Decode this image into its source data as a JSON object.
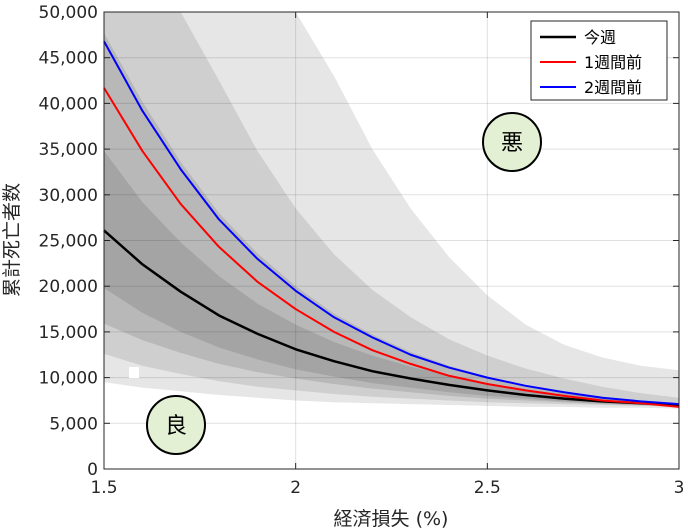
{
  "chart_data": {
    "type": "line",
    "xlabel": "経済損失 (%)",
    "ylabel": "累計死亡者数",
    "xlim": [
      1.5,
      3
    ],
    "ylim": [
      0,
      50000
    ],
    "xticks": [
      1.5,
      2,
      2.5,
      3
    ],
    "xtick_labels": [
      "1.5",
      "2",
      "2.5",
      "3"
    ],
    "yticks": [
      0,
      5000,
      10000,
      15000,
      20000,
      25000,
      30000,
      35000,
      40000,
      45000,
      50000
    ],
    "ytick_labels": [
      "0",
      "5,000",
      "10,000",
      "15,000",
      "20,000",
      "25,000",
      "30,000",
      "35,000",
      "40,000",
      "45,000",
      "50,000"
    ],
    "grid": true,
    "legend_position": "top-right",
    "x": [
      1.5,
      1.6,
      1.7,
      1.8,
      1.9,
      2.0,
      2.1,
      2.2,
      2.3,
      2.4,
      2.5,
      2.6,
      2.7,
      2.8,
      2.9,
      3.0
    ],
    "series": [
      {
        "name": "今週",
        "color": "#000000",
        "values": [
          26100,
          22400,
          19400,
          16800,
          14800,
          13100,
          11800,
          10700,
          9900,
          9200,
          8600,
          8100,
          7700,
          7400,
          7200,
          7000
        ]
      },
      {
        "name": "1週間前",
        "color": "#ff0000",
        "values": [
          41700,
          34800,
          29000,
          24300,
          20500,
          17500,
          15000,
          13000,
          11500,
          10200,
          9300,
          8600,
          8000,
          7500,
          7200,
          6800
        ]
      },
      {
        "name": "2週間前",
        "color": "#0000ff",
        "values": [
          46800,
          39200,
          32800,
          27300,
          23000,
          19500,
          16600,
          14400,
          12500,
          11100,
          10000,
          9100,
          8400,
          7800,
          7400,
          7100
        ]
      }
    ],
    "bands": [
      {
        "color": "#e6e6e6",
        "lower": [
          9500,
          8900,
          8500,
          8100,
          7800,
          7500,
          7300,
          7200,
          7100,
          7000,
          6900,
          6800,
          6800,
          6700,
          6700,
          6600
        ],
        "upper": [
          50000,
          50000,
          50000,
          50000,
          50000,
          50000,
          43000,
          35000,
          28500,
          23200,
          19000,
          15800,
          13600,
          12200,
          11300,
          10800
        ]
      },
      {
        "color": "#cfcfcf",
        "lower": [
          12600,
          11300,
          10400,
          9600,
          9000,
          8600,
          8200,
          7900,
          7700,
          7500,
          7300,
          7200,
          7100,
          7000,
          6900,
          6800
        ],
        "upper": [
          50000,
          50000,
          50000,
          42500,
          34800,
          28500,
          23500,
          19600,
          16600,
          14200,
          12400,
          11000,
          9900,
          9000,
          8300,
          7800
        ]
      },
      {
        "color": "#b8b8b8",
        "lower": [
          15900,
          14100,
          12700,
          11500,
          10600,
          9900,
          9300,
          8800,
          8400,
          8000,
          7700,
          7500,
          7300,
          7100,
          7000,
          6900
        ],
        "upper": [
          47700,
          40200,
          33600,
          28000,
          23600,
          20000,
          17000,
          14700,
          12800,
          11300,
          10100,
          9200,
          8500,
          7900,
          7500,
          7200
        ]
      },
      {
        "color": "#a4a4a4",
        "lower": [
          19800,
          17100,
          15000,
          13300,
          12000,
          10900,
          10100,
          9400,
          8900,
          8400,
          8000,
          7700,
          7400,
          7200,
          7000,
          6900
        ],
        "upper": [
          34800,
          29200,
          24800,
          21100,
          18100,
          15800,
          13900,
          12400,
          11200,
          10200,
          9400,
          8700,
          8200,
          7800,
          7400,
          7100
        ]
      }
    ]
  },
  "legend": {
    "items": [
      {
        "label": "今週",
        "color": "#000000"
      },
      {
        "label": "1週間前",
        "color": "#ff0000"
      },
      {
        "label": "2週間前",
        "color": "#0000ff"
      }
    ]
  },
  "annotations": {
    "bad": {
      "label": "悪",
      "fill": "#e3f0d4"
    },
    "good": {
      "label": "良",
      "fill": "#e3f0d4"
    }
  }
}
